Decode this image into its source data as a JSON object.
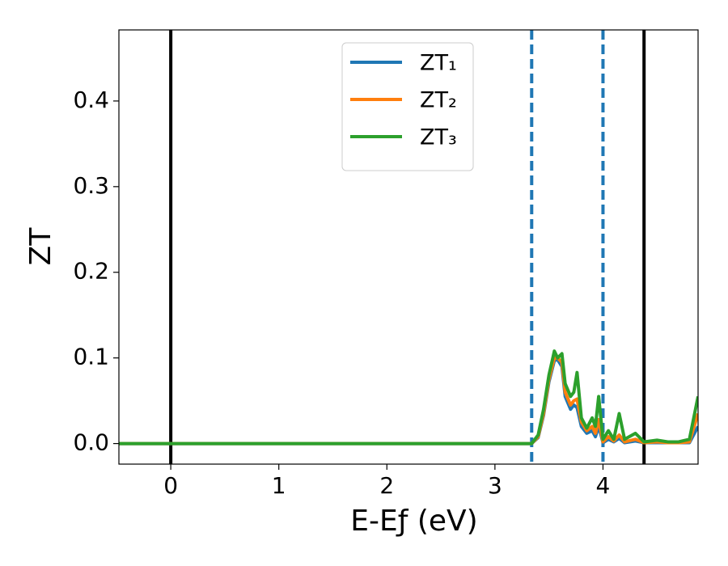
{
  "chart_data": {
    "type": "line",
    "xlabel": "E-Eƒ (eV)",
    "ylabel": "ZT",
    "x": [
      -0.48,
      3.34,
      3.4,
      3.45,
      3.5,
      3.55,
      3.58,
      3.62,
      3.65,
      3.7,
      3.73,
      3.76,
      3.8,
      3.85,
      3.9,
      3.93,
      3.96,
      4.0,
      4.05,
      4.1,
      4.15,
      4.2,
      4.3,
      4.38,
      4.5,
      4.6,
      4.7,
      4.8,
      4.88
    ],
    "series": [
      {
        "name": "ZT₁",
        "color": "#1f77b4",
        "values": [
          0,
          0,
          0.007,
          0.033,
          0.072,
          0.097,
          0.098,
          0.09,
          0.055,
          0.04,
          0.045,
          0.042,
          0.02,
          0.012,
          0.015,
          0.008,
          0.02,
          0.001,
          0.005,
          0.002,
          0.006,
          0.001,
          0.003,
          0.001,
          0.001,
          0.001,
          0.001,
          0.001,
          0.02
        ]
      },
      {
        "name": "ZT₂",
        "color": "#ff7f0e",
        "values": [
          0,
          0,
          0.008,
          0.035,
          0.075,
          0.1,
          0.1,
          0.095,
          0.06,
          0.045,
          0.05,
          0.052,
          0.025,
          0.015,
          0.02,
          0.012,
          0.028,
          0.002,
          0.008,
          0.003,
          0.01,
          0.002,
          0.005,
          0.001,
          0.002,
          0.001,
          0.001,
          0.002,
          0.035
        ]
      },
      {
        "name": "ZT₃",
        "color": "#2ca02c",
        "values": [
          0,
          0,
          0.01,
          0.04,
          0.08,
          0.108,
          0.1,
          0.105,
          0.07,
          0.055,
          0.06,
          0.083,
          0.03,
          0.018,
          0.03,
          0.02,
          0.055,
          0.005,
          0.015,
          0.005,
          0.035,
          0.005,
          0.012,
          0.002,
          0.004,
          0.002,
          0.002,
          0.005,
          0.055
        ]
      }
    ],
    "vlines": [
      {
        "x": 0,
        "color": "#000000",
        "style": "solid"
      },
      {
        "x": 4.38,
        "color": "#000000",
        "style": "solid"
      },
      {
        "x": 3.34,
        "color": "#1f77b4",
        "style": "dashed"
      },
      {
        "x": 4.0,
        "color": "#1f77b4",
        "style": "dashed"
      }
    ],
    "xlim": [
      -0.48,
      4.88
    ],
    "ylim": [
      -0.024,
      0.483
    ],
    "xticks": [
      0,
      1,
      2,
      3,
      4
    ],
    "yticks": [
      {
        "value": 0,
        "label": "0.0"
      },
      0.1,
      0.2,
      0.3,
      0.4
    ],
    "grid": false,
    "legend": "upper center"
  }
}
